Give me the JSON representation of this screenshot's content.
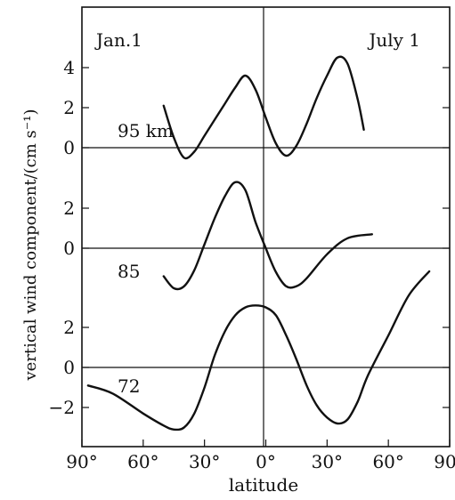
{
  "chart_data": {
    "type": "line",
    "xlabel": "latitude",
    "ylabel": "vertical wind component/(cm s⁻¹)",
    "xlim": [
      -90,
      90
    ],
    "x_tick_labels": [
      "90°",
      "60°",
      "30°",
      "0°",
      "30°",
      "60°",
      "90°"
    ],
    "x_tick_values": [
      -90,
      -60,
      -30,
      0,
      30,
      60,
      90
    ],
    "corner_labels": {
      "left": "Jan.1",
      "right": "July 1"
    },
    "grid": "zero lines and equator line",
    "panels": [
      {
        "name": "95 km",
        "y_ticks": [
          0,
          2,
          4
        ],
        "y_tick_labels": [
          "0",
          "2",
          "4"
        ],
        "x": [
          -50,
          -45,
          -40,
          -35,
          -30,
          -25,
          -20,
          -15,
          -10,
          -5,
          0,
          5,
          10,
          15,
          20,
          25,
          30,
          35,
          40,
          45,
          48
        ],
        "values": [
          2.1,
          0.5,
          -0.5,
          -0.2,
          0.6,
          1.4,
          2.2,
          3.0,
          3.6,
          2.9,
          1.5,
          0.2,
          -0.4,
          0.1,
          1.2,
          2.5,
          3.6,
          4.5,
          4.2,
          2.4,
          0.9
        ]
      },
      {
        "name": "85",
        "y_ticks": [
          0,
          2
        ],
        "y_tick_labels": [
          "0",
          "2"
        ],
        "x": [
          -50,
          -45,
          -40,
          -35,
          -30,
          -25,
          -20,
          -15,
          -10,
          -5,
          0,
          5,
          10,
          15,
          20,
          30,
          40,
          52
        ],
        "values": [
          -1.4,
          -2.0,
          -1.9,
          -1.1,
          0.2,
          1.5,
          2.6,
          3.3,
          2.9,
          1.3,
          0.0,
          -1.2,
          -1.9,
          -1.9,
          -1.5,
          -0.3,
          0.5,
          0.7
        ]
      },
      {
        "name": "72",
        "y_ticks": [
          -2,
          0,
          2
        ],
        "y_tick_labels": [
          "−2",
          "0",
          "2"
        ],
        "x": [
          -87,
          -75,
          -60,
          -50,
          -45,
          -40,
          -35,
          -30,
          -25,
          -20,
          -15,
          -10,
          -5,
          0,
          5,
          10,
          15,
          20,
          25,
          30,
          35,
          40,
          45,
          50,
          60,
          70,
          80
        ],
        "values": [
          -0.9,
          -1.3,
          -2.3,
          -2.9,
          -3.1,
          -3.0,
          -2.3,
          -1.0,
          0.6,
          1.8,
          2.6,
          3.0,
          3.1,
          3.0,
          2.6,
          1.6,
          0.4,
          -0.9,
          -1.9,
          -2.5,
          -2.8,
          -2.6,
          -1.7,
          -0.4,
          1.6,
          3.6,
          4.8
        ]
      }
    ]
  }
}
